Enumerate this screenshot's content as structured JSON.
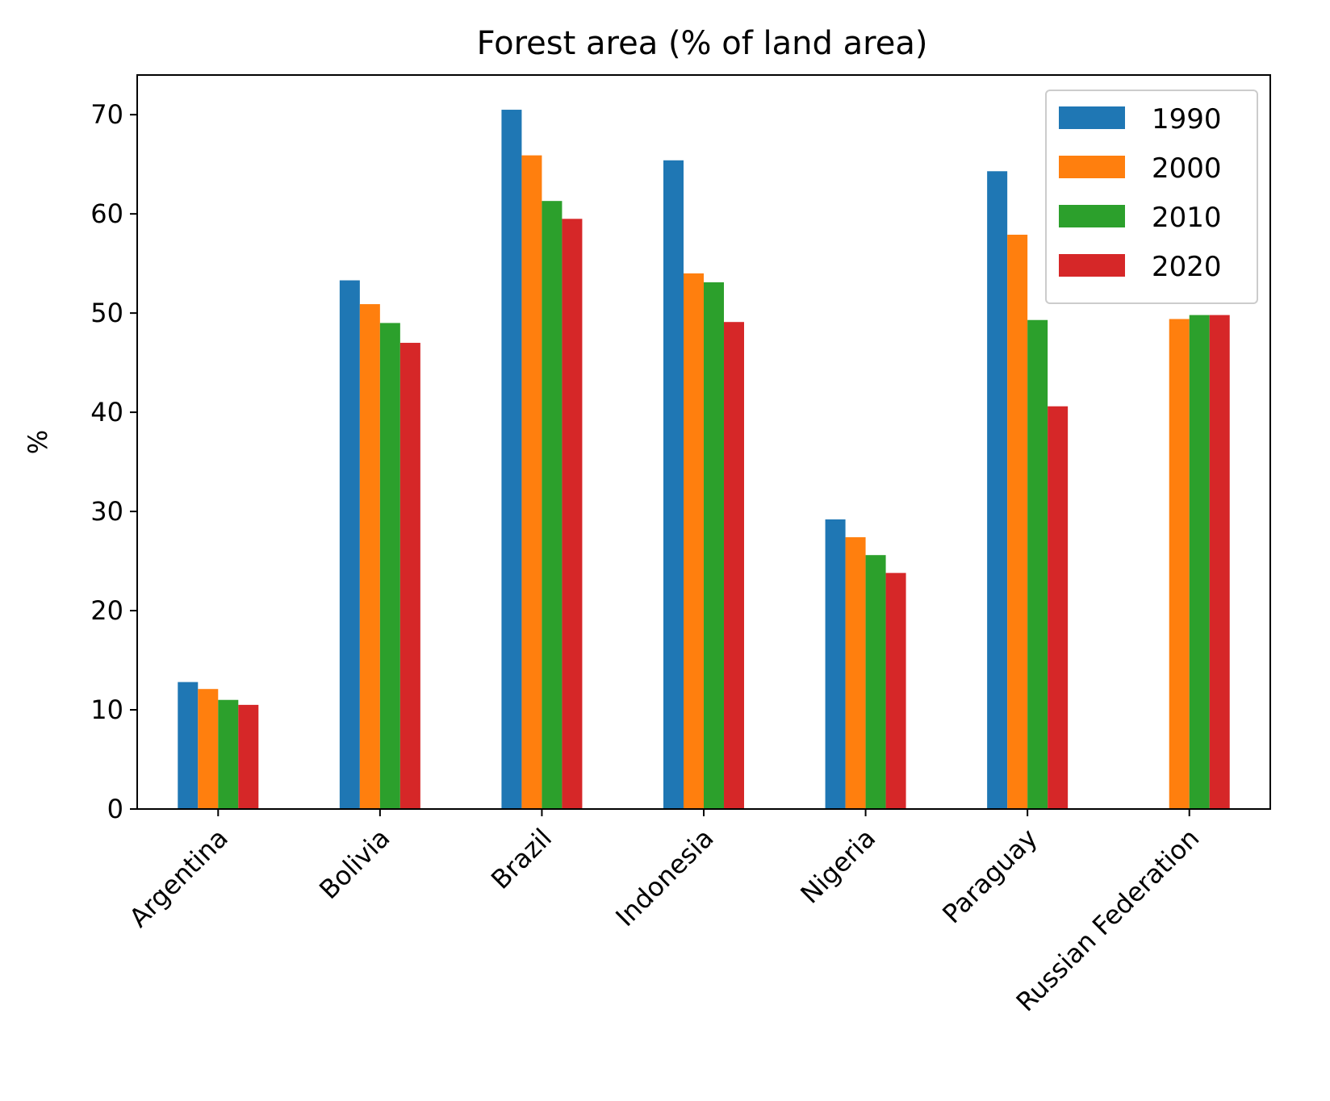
{
  "chart_data": {
    "type": "bar",
    "title": "Forest area (% of land area)",
    "xlabel": "",
    "ylabel": "%",
    "ylim": [
      0,
      74
    ],
    "yticks": [
      0,
      10,
      20,
      30,
      40,
      50,
      60,
      70
    ],
    "categories": [
      "Argentina",
      "Bolivia",
      "Brazil",
      "Indonesia",
      "Nigeria",
      "Paraguay",
      "Russian Federation"
    ],
    "series": [
      {
        "name": "1990",
        "color": "#1f77b4",
        "values": [
          12.8,
          53.3,
          70.5,
          65.4,
          29.2,
          64.3,
          null
        ]
      },
      {
        "name": "2000",
        "color": "#ff7f0e",
        "values": [
          12.1,
          50.9,
          65.9,
          54.0,
          27.4,
          57.9,
          49.4
        ]
      },
      {
        "name": "2010",
        "color": "#2ca02c",
        "values": [
          11.0,
          49.0,
          61.3,
          53.1,
          25.6,
          49.3,
          49.8
        ]
      },
      {
        "name": "2020",
        "color": "#d62728",
        "values": [
          10.5,
          47.0,
          59.5,
          49.1,
          23.8,
          40.6,
          49.8
        ]
      }
    ],
    "grid": false,
    "legend_position": "upper right"
  }
}
